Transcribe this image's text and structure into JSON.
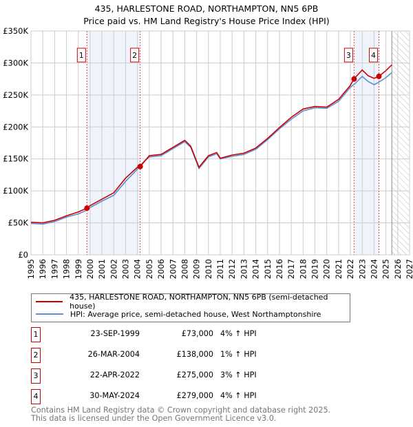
{
  "chart_data": {
    "type": "line",
    "title": "435, HARLESTONE ROAD, NORTHAMPTON, NN5 6PB",
    "subtitle": "Price paid vs. HM Land Registry's House Price Index (HPI)",
    "xlim": [
      1995,
      2027
    ],
    "ylim": [
      0,
      350000
    ],
    "y_ticks": [
      {
        "v": 0,
        "l": "£0"
      },
      {
        "v": 50000,
        "l": "£50K"
      },
      {
        "v": 100000,
        "l": "£100K"
      },
      {
        "v": 150000,
        "l": "£150K"
      },
      {
        "v": 200000,
        "l": "£200K"
      },
      {
        "v": 250000,
        "l": "£250K"
      },
      {
        "v": 300000,
        "l": "£300K"
      },
      {
        "v": 350000,
        "l": "£350K"
      }
    ],
    "x_ticks": [
      "1995",
      "1996",
      "1997",
      "1998",
      "1999",
      "2000",
      "2001",
      "2002",
      "2003",
      "2004",
      "2005",
      "2006",
      "2007",
      "2008",
      "2009",
      "2010",
      "2011",
      "2012",
      "2013",
      "2014",
      "2015",
      "2016",
      "2017",
      "2018",
      "2019",
      "2020",
      "2021",
      "2022",
      "2023",
      "2024",
      "2025",
      "2026",
      "2027"
    ],
    "forecast_start": 2025.5,
    "series": [
      {
        "name": "435, HARLESTONE ROAD, NORTHAMPTON, NN5 6PB (semi-detached house)",
        "color": "#cc0000",
        "x": [
          1995,
          1996,
          1997,
          1998,
          1999,
          1999.73,
          2000,
          2001,
          2002,
          2003,
          2004,
          2004.23,
          2005,
          2006,
          2007,
          2008,
          2008.5,
          2009.2,
          2010,
          2010.7,
          2011,
          2012,
          2013,
          2014,
          2015,
          2016,
          2017,
          2018,
          2019,
          2020,
          2021,
          2022,
          2022.3,
          2023,
          2023.5,
          2024,
          2024.41,
          2025,
          2025.5
        ],
        "y": [
          51000,
          50000,
          54000,
          61000,
          67000,
          73000,
          77000,
          87000,
          97000,
          120000,
          137000,
          138000,
          155000,
          157000,
          168000,
          179000,
          170000,
          137000,
          155000,
          160000,
          151000,
          156000,
          159000,
          167000,
          182000,
          199000,
          215000,
          228000,
          232000,
          231000,
          243000,
          265000,
          275000,
          289000,
          280000,
          276000,
          279000,
          288000,
          297000
        ]
      },
      {
        "name": "HPI: Average price, semi-detached house, West Northamptonshire",
        "color": "#5b8fd4",
        "x": [
          1995,
          1996,
          1997,
          1998,
          1999,
          1999.73,
          2000,
          2001,
          2002,
          2003,
          2004,
          2004.5,
          2005,
          2006,
          2007,
          2008,
          2008.5,
          2009.2,
          2010,
          2010.7,
          2011,
          2012,
          2013,
          2014,
          2015,
          2016,
          2017,
          2018,
          2019,
          2020,
          2021,
          2022,
          2022.4,
          2023,
          2023.5,
          2024,
          2024.4,
          2025,
          2025.5
        ],
        "y": [
          49000,
          48000,
          52000,
          59000,
          64000,
          70000,
          74000,
          84000,
          93000,
          115000,
          134000,
          145000,
          153000,
          155000,
          166000,
          177000,
          168000,
          135000,
          153000,
          158000,
          150000,
          154000,
          157000,
          165000,
          180000,
          197000,
          212000,
          225000,
          230000,
          229000,
          240000,
          262000,
          268000,
          279000,
          271000,
          266000,
          270000,
          277000,
          285000
        ]
      }
    ],
    "sales": [
      {
        "n": "1",
        "x": 1999.73,
        "date": "23-SEP-1999",
        "price": 73000,
        "price_label": "£73,000",
        "hpi": "4% ↑ HPI"
      },
      {
        "n": "2",
        "x": 2004.23,
        "date": "26-MAR-2004",
        "price": 138000,
        "price_label": "£138,000",
        "hpi": "1% ↑ HPI"
      },
      {
        "n": "3",
        "x": 2022.31,
        "date": "22-APR-2022",
        "price": 275000,
        "price_label": "£275,000",
        "hpi": "3% ↑ HPI"
      },
      {
        "n": "4",
        "x": 2024.41,
        "date": "30-MAY-2024",
        "price": 279000,
        "price_label": "£279,000",
        "hpi": "4% ↑ HPI"
      }
    ]
  },
  "legend": {
    "red": "435, HARLESTONE ROAD, NORTHAMPTON, NN5 6PB (semi-detached house)",
    "blue": "HPI: Average price, semi-detached house, West Northamptonshire"
  },
  "footer": {
    "line1": "Contains HM Land Registry data © Crown copyright and database right 2025.",
    "line2": "This data is licensed under the Open Government Licence v3.0."
  }
}
